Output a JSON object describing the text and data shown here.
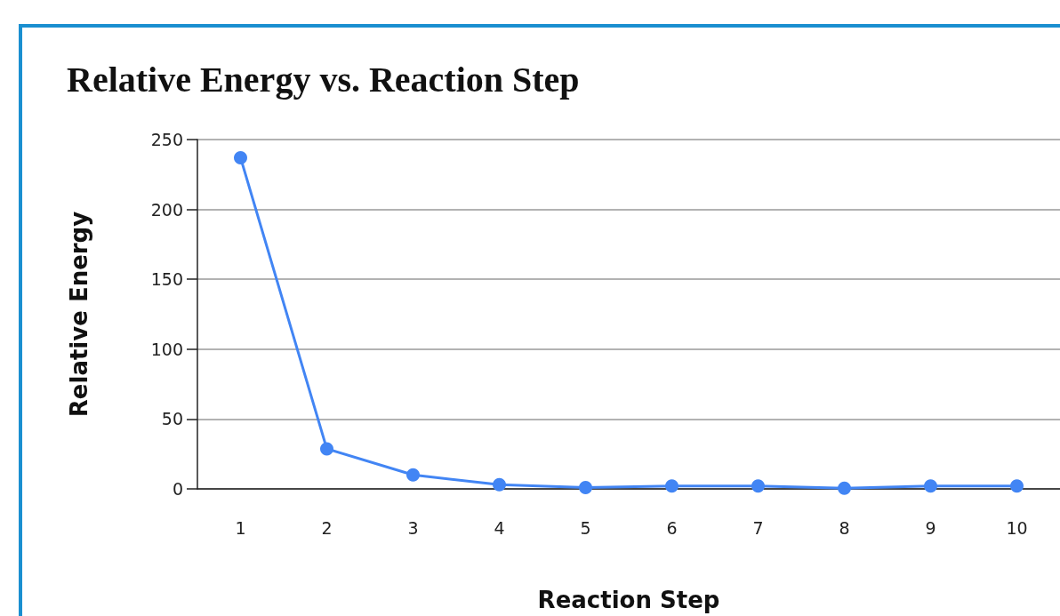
{
  "chart_data": {
    "type": "line",
    "title": "Relative Energy vs. Reaction Step",
    "xlabel": "Reaction Step",
    "ylabel": "Relative Energy",
    "categories": [
      "1",
      "2",
      "3",
      "4",
      "5",
      "6",
      "7",
      "8",
      "9",
      "10"
    ],
    "series": [
      {
        "color": "#4285f4",
        "values": [
          237,
          28.7,
          10,
          3,
          1,
          2,
          2,
          0.5,
          2,
          2
        ]
      }
    ],
    "ylim": [
      0,
      250
    ],
    "yticks": [
      0,
      50,
      100,
      150,
      200,
      250
    ],
    "grid": "y",
    "marker": "circle",
    "line_style": "solid"
  }
}
